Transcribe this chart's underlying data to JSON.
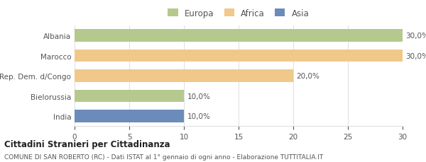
{
  "categories": [
    "Albania",
    "Marocco",
    "Rep. Dem. d/Congo",
    "Bielorussia",
    "India"
  ],
  "values": [
    30,
    30,
    20,
    10,
    10
  ],
  "labels": [
    "30,0%",
    "30,0%",
    "20,0%",
    "10,0%",
    "10,0%"
  ],
  "colors": [
    "#b5c98e",
    "#f0c98a",
    "#f0c98a",
    "#b5c98e",
    "#6b8cba"
  ],
  "legend_labels": [
    "Europa",
    "Africa",
    "Asia"
  ],
  "legend_colors": [
    "#b5c98e",
    "#f0c98a",
    "#6b8cba"
  ],
  "xlim": [
    0,
    30
  ],
  "xticks": [
    0,
    5,
    10,
    15,
    20,
    25,
    30
  ],
  "title_bold": "Cittadini Stranieri per Cittadinanza",
  "subtitle": "COMUNE DI SAN ROBERTO (RC) - Dati ISTAT al 1° gennaio di ogni anno - Elaborazione TUTTITALIA.IT",
  "bar_height": 0.62,
  "background_color": "#ffffff",
  "label_fontsize": 7.5,
  "tick_fontsize": 7.5,
  "legend_fontsize": 8.5
}
